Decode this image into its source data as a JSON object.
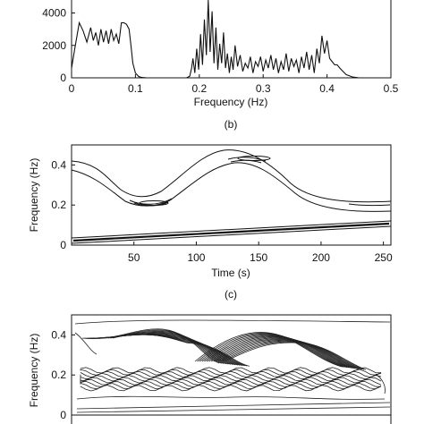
{
  "chart_data": [
    {
      "type": "line",
      "panel": "spectrum",
      "caption": "(b)",
      "xlabel": "Frequency (Hz)",
      "ylabel": "",
      "xlim": [
        0,
        0.5
      ],
      "ylim": [
        0,
        4800
      ],
      "xticks": [
        0,
        0.1,
        0.2,
        0.3,
        0.4,
        0.5
      ],
      "xtick_labels": [
        "0",
        "0.1",
        "0.2",
        "0.3",
        "0.4",
        "0.5"
      ],
      "yticks": [
        0,
        2000,
        4000
      ],
      "ytick_labels": [
        "0",
        "2000",
        "4000"
      ],
      "series": [
        {
          "x": [
            0,
            0.005,
            0.012,
            0.018,
            0.024,
            0.03,
            0.034,
            0.038,
            0.042,
            0.046,
            0.05,
            0.054,
            0.058,
            0.062,
            0.066,
            0.07,
            0.074,
            0.078,
            0.082,
            0.086,
            0.09,
            0.093,
            0.096,
            0.1,
            0.105,
            0.11,
            0.118,
            0.13,
            0.15,
            0.17,
            0.18,
            0.185,
            0.188,
            0.19,
            0.193,
            0.196,
            0.199,
            0.202,
            0.205,
            0.208,
            0.211,
            0.214,
            0.217,
            0.22,
            0.223,
            0.226,
            0.229,
            0.232,
            0.235,
            0.238,
            0.241,
            0.244,
            0.247,
            0.25,
            0.253,
            0.256,
            0.26,
            0.264,
            0.268,
            0.272,
            0.276,
            0.28,
            0.284,
            0.288,
            0.292,
            0.296,
            0.3,
            0.304,
            0.308,
            0.312,
            0.316,
            0.32,
            0.324,
            0.328,
            0.332,
            0.336,
            0.34,
            0.344,
            0.348,
            0.352,
            0.356,
            0.36,
            0.364,
            0.368,
            0.372,
            0.376,
            0.38,
            0.384,
            0.388,
            0.392,
            0.396,
            0.4,
            0.404,
            0.408,
            0.412,
            0.416,
            0.42,
            0.425,
            0.43,
            0.44,
            0.45,
            0.46,
            0.47,
            0.48,
            0.5
          ],
          "y": [
            600,
            1800,
            3400,
            2900,
            2200,
            3100,
            2300,
            2800,
            2000,
            3000,
            2200,
            2900,
            2100,
            3000,
            2300,
            2700,
            2100,
            3400,
            3400,
            3300,
            3000,
            2000,
            900,
            300,
            80,
            20,
            0,
            0,
            0,
            0,
            0,
            100,
            600,
            1200,
            300,
            1800,
            500,
            2700,
            800,
            3600,
            1400,
            4800,
            1600,
            4100,
            900,
            3100,
            500,
            2100,
            900,
            2800,
            600,
            1500,
            300,
            1300,
            500,
            2000,
            700,
            1400,
            400,
            900,
            600,
            1300,
            300,
            1000,
            700,
            1300,
            400,
            1100,
            600,
            1400,
            500,
            1200,
            300,
            1000,
            500,
            1500,
            400,
            1200,
            700,
            1100,
            300,
            1300,
            600,
            1600,
            500,
            1400,
            300,
            1800,
            900,
            2600,
            1500,
            2300,
            1200,
            1000,
            800,
            800,
            600,
            400,
            200,
            50,
            0,
            0,
            0,
            0,
            0
          ]
        }
      ]
    },
    {
      "type": "contour",
      "panel": "time-frequency",
      "caption": "(c)",
      "xlabel": "Time (s)",
      "ylabel": "Frequency (Hz)",
      "xlim": [
        0,
        256
      ],
      "ylim": [
        0,
        0.5
      ],
      "xticks": [
        50,
        100,
        150,
        200,
        250
      ],
      "xtick_labels": [
        "50",
        "100",
        "150",
        "200",
        "250"
      ],
      "yticks": [
        0,
        0.2,
        0.4
      ],
      "ytick_labels": [
        "0",
        "0.2",
        "0.4"
      ],
      "series": [
        {
          "x": [
            0,
            256
          ],
          "y": [
            0.02,
            0.12
          ]
        },
        {
          "x": [
            0,
            20,
            40,
            60,
            70,
            80,
            100,
            120,
            140,
            150,
            160,
            180,
            200,
            220,
            240,
            256
          ],
          "y": [
            0.39,
            0.36,
            0.3,
            0.23,
            0.21,
            0.22,
            0.28,
            0.37,
            0.43,
            0.44,
            0.43,
            0.37,
            0.28,
            0.22,
            0.21,
            0.21
          ]
        }
      ]
    },
    {
      "type": "contour",
      "panel": "time-frequency-2",
      "caption": "",
      "xlabel": "",
      "ylabel": "Frequency (Hz)",
      "xlim": [
        0,
        256
      ],
      "ylim": [
        0,
        0.5
      ],
      "yticks": [
        0,
        0.2,
        0.4
      ],
      "ytick_labels": [
        "0",
        "0.2",
        "0.4"
      ]
    }
  ]
}
